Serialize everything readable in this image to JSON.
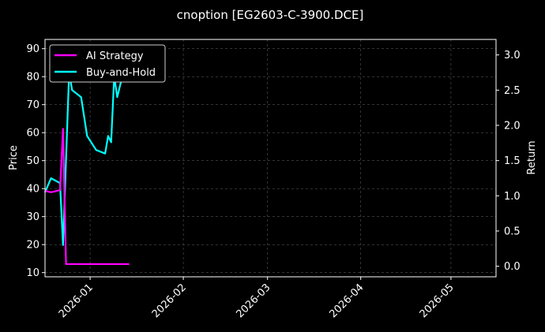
{
  "chart_data": {
    "type": "line",
    "title": "cnoption [EG2603-C-3900.DCE]",
    "xlabel": "",
    "ylabel_left": "Price",
    "ylabel_right": "Return",
    "x_range": [
      "2025-12-17",
      "2026-05-16"
    ],
    "ylim_left": [
      8.5,
      93.3
    ],
    "ylim_right": [
      -0.15,
      3.22
    ],
    "x_ticks": [
      {
        "date": "2026-01-01",
        "label": "2026-01"
      },
      {
        "date": "2026-02-01",
        "label": "2026-02"
      },
      {
        "date": "2026-03-01",
        "label": "2026-03"
      },
      {
        "date": "2026-04-01",
        "label": "2026-04"
      },
      {
        "date": "2026-05-01",
        "label": "2026-05"
      }
    ],
    "y_ticks_left": [
      10,
      20,
      30,
      40,
      50,
      60,
      70,
      80,
      90
    ],
    "y_ticks_right": [
      0.0,
      0.5,
      1.0,
      1.5,
      2.0,
      2.5,
      3.0
    ],
    "y_tick_labels_right": [
      "0.0",
      "0.5",
      "1.0",
      "1.5",
      "2.0",
      "2.5",
      "3.0"
    ],
    "grid": true,
    "legend_position": "top-left",
    "series": [
      {
        "name": "AI Strategy",
        "axis": "right",
        "color": "#ff00ff",
        "x": [
          "2025-12-17",
          "2025-12-19",
          "2025-12-22",
          "2025-12-23",
          "2025-12-24",
          "2025-12-25",
          "2025-12-31",
          "2026-01-05",
          "2026-01-10",
          "2026-01-14"
        ],
        "values": [
          1.07,
          1.05,
          1.08,
          1.95,
          0.03,
          0.03,
          0.03,
          0.03,
          0.03,
          0.03
        ]
      },
      {
        "name": "Buy-and-Hold",
        "axis": "right",
        "color": "#00ffff",
        "x": [
          "2025-12-17",
          "2025-12-19",
          "2025-12-22",
          "2025-12-23",
          "2025-12-25",
          "2025-12-26",
          "2025-12-29",
          "2025-12-31",
          "2026-01-03",
          "2026-01-06",
          "2026-01-07",
          "2026-01-08",
          "2026-01-09",
          "2026-01-10",
          "2026-01-12",
          "2026-01-13"
        ],
        "values": [
          1.05,
          1.25,
          1.18,
          0.3,
          2.75,
          2.5,
          2.4,
          1.85,
          1.65,
          1.6,
          1.85,
          1.76,
          2.7,
          2.4,
          2.75,
          2.82
        ]
      }
    ]
  }
}
